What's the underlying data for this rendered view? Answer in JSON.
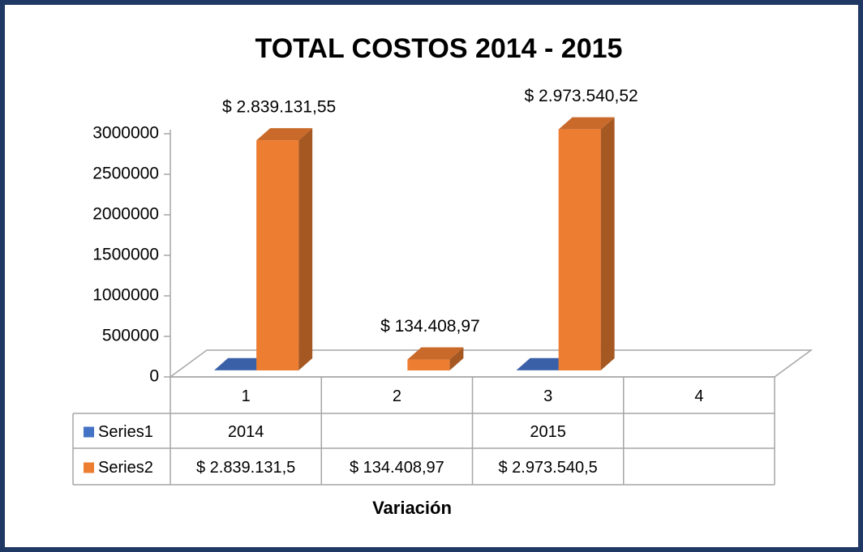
{
  "chart_data": {
    "type": "bar3d",
    "title": "TOTAL COSTOS 2014 - 2015",
    "x_label": "Variación",
    "categories": [
      "1",
      "2",
      "3",
      "4"
    ],
    "series": [
      {
        "name": "Series1",
        "color": "#4472c4",
        "values": [
          2014,
          null,
          2015,
          null
        ]
      },
      {
        "name": "Series2",
        "color": "#ed7d31",
        "values": [
          2839131.55,
          134408.97,
          2973540.52,
          null
        ],
        "value_labels": [
          "$ 2.839.131,55",
          "$ 134.408,97",
          "$ 2.973.540,52",
          null
        ],
        "table_labels": [
          "$ 2.839.131,5",
          "$ 134.408,97",
          "$ 2.973.540,5",
          null
        ]
      }
    ],
    "ylim": [
      0,
      3000000
    ],
    "yticks": [
      0,
      500000,
      1000000,
      1500000,
      2000000,
      2500000,
      3000000
    ],
    "data_table": true
  }
}
